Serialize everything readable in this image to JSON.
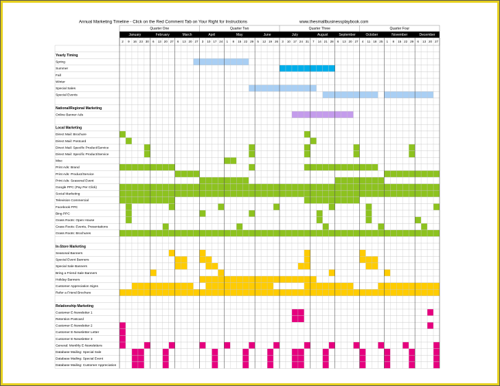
{
  "header": {
    "title": "Annual Marketing Timeline - Click on the Red Comment Tab on Your Right for Instructions",
    "url": "www.thesmallbusinessplaybook.com"
  },
  "quarters": [
    "Quarter One",
    "Quarter Two",
    "Quarter Three",
    "Quarter Four"
  ],
  "months": [
    {
      "name": "January",
      "days": [
        2,
        9,
        16,
        23,
        30
      ]
    },
    {
      "name": "February",
      "days": [
        6,
        13,
        20,
        27
      ]
    },
    {
      "name": "March",
      "days": [
        6,
        13,
        20,
        27
      ]
    },
    {
      "name": "April",
      "days": [
        3,
        10,
        17,
        24
      ]
    },
    {
      "name": "May",
      "days": [
        1,
        8,
        15,
        22,
        29
      ]
    },
    {
      "name": "June",
      "days": [
        5,
        12,
        19,
        26
      ]
    },
    {
      "name": "July",
      "days": [
        3,
        10,
        17,
        24,
        31
      ]
    },
    {
      "name": "August",
      "days": [
        7,
        14,
        21,
        28
      ]
    },
    {
      "name": "September",
      "days": [
        6,
        13,
        20,
        27
      ]
    },
    {
      "name": "October",
      "days": [
        4,
        11,
        18,
        25
      ]
    },
    {
      "name": "November",
      "days": [
        1,
        8,
        15,
        22,
        29
      ]
    },
    {
      "name": "December",
      "days": [
        6,
        13,
        20,
        27
      ]
    }
  ],
  "sections": [
    {
      "title": "Yearly Timing",
      "color": "#a9cff4",
      "rows": [
        {
          "label": "Spring",
          "fills": [
            [
              12,
              20
            ]
          ]
        },
        {
          "label": "Summer",
          "color": "#00aeea",
          "fills": [
            [
              26,
              34
            ]
          ]
        },
        {
          "label": "Fall",
          "fills": []
        },
        {
          "label": "Winter",
          "fills": []
        },
        {
          "label": "Special Sales",
          "fills": [
            [
              21,
              31
            ]
          ]
        },
        {
          "label": "Special Events",
          "fills": [
            [
              33,
              41
            ],
            [
              43,
              50
            ]
          ]
        }
      ]
    },
    {
      "title": "National/Regional Marketing",
      "color": "#c49cec",
      "rows": [
        {
          "label": "Online Banner Ads",
          "fills": [
            [
              28,
              37
            ]
          ]
        }
      ]
    },
    {
      "title": "Local Marketing",
      "color": "#8dc21f",
      "rows": [
        {
          "label": "Direct Mail: Brochure",
          "fills": [
            [
              0,
              0
            ],
            [
              30,
              30
            ]
          ]
        },
        {
          "label": "Direct Mail: Postcard",
          "fills": [
            [
              1,
              1
            ],
            [
              31,
              31
            ]
          ]
        },
        {
          "label": "Direct Mail: Specific Product/Service",
          "fills": [
            [
              4,
              4
            ],
            [
              21,
              21
            ],
            [
              30,
              30
            ],
            [
              38,
              38
            ],
            [
              47,
              47
            ]
          ]
        },
        {
          "label": "Direct Mail: Specific Product/Service",
          "fills": [
            [
              4,
              4
            ],
            [
              21,
              21
            ],
            [
              30,
              30
            ],
            [
              38,
              38
            ],
            [
              47,
              47
            ]
          ]
        },
        {
          "label": "Misc",
          "fills": [
            [
              17,
              18
            ]
          ]
        },
        {
          "label": "Print Ads: Brand",
          "fills": [
            [
              0,
              8
            ],
            [
              21,
              21
            ],
            [
              30,
              41
            ]
          ]
        },
        {
          "label": "Print Ads: Product/Service",
          "fills": [
            [
              9,
              12
            ],
            [
              43,
              51
            ]
          ]
        },
        {
          "label": "Print Ads: Seasonal Event",
          "fills": [
            [
              13,
              20
            ],
            [
              35,
              42
            ]
          ]
        },
        {
          "label": "Google PPC (Pay Per Click)",
          "fills": [
            [
              0,
              51
            ]
          ]
        },
        {
          "label": "Social Marketing",
          "fills": [
            [
              0,
              51
            ]
          ]
        },
        {
          "label": "Television Commercial",
          "fills": [
            [
              0,
              8
            ],
            [
              30,
              38
            ]
          ]
        },
        {
          "label": "Facebook PPC",
          "fills": [
            [
              1,
              1
            ],
            [
              8,
              8
            ],
            [
              16,
              16
            ],
            [
              25,
              25
            ],
            [
              34,
              34
            ],
            [
              40,
              40
            ],
            [
              51,
              51
            ]
          ]
        },
        {
          "label": "Bing PPC",
          "fills": [
            [
              1,
              1
            ],
            [
              13,
              13
            ],
            [
              21,
              21
            ],
            [
              32,
              32
            ],
            [
              40,
              40
            ]
          ]
        },
        {
          "label": "Grass Roots: Open House",
          "fills": [
            [
              1,
              1
            ],
            [
              32,
              32
            ],
            [
              40,
              40
            ],
            [
              48,
              48
            ]
          ]
        },
        {
          "label": "Grass Roots: Events, Presentations",
          "fills": [
            [
              7,
              7
            ],
            [
              19,
              19
            ],
            [
              33,
              33
            ],
            [
              42,
              42
            ],
            [
              49,
              49
            ]
          ]
        },
        {
          "label": "Grass Roots: Brochures",
          "fills": [
            [
              0,
              51
            ]
          ]
        }
      ]
    },
    {
      "title": "In-Store Marketing",
      "color": "#ffcc00",
      "rows": [
        {
          "label": "Seasonal Banners",
          "fills": [
            [
              8,
              8
            ],
            [
              13,
              13
            ],
            [
              30,
              30
            ],
            [
              39,
              39
            ]
          ]
        },
        {
          "label": "Special Event Banners",
          "fills": [
            [
              9,
              10
            ],
            [
              13,
              14
            ],
            [
              30,
              30
            ],
            [
              39,
              41
            ]
          ]
        },
        {
          "label": "Special Sale Banners",
          "fills": [
            [
              9,
              10
            ],
            [
              14,
              15
            ],
            [
              29,
              30
            ],
            [
              40,
              41
            ]
          ]
        },
        {
          "label": "Bring a Friend Sale Banners",
          "fills": [
            [
              5,
              5
            ],
            [
              16,
              16
            ],
            [
              34,
              34
            ],
            [
              43,
              43
            ]
          ]
        },
        {
          "label": "Holiday Banners",
          "fills": [
            [
              13,
              31
            ]
          ]
        },
        {
          "label": "Customer Appreciation Signs",
          "fills": [
            [
              2,
              11
            ],
            [
              14,
              24
            ],
            [
              30,
              37
            ],
            [
              42,
              51
            ]
          ]
        },
        {
          "label": "Refer a Friend Brochure",
          "fills": [
            [
              0,
              51
            ]
          ]
        }
      ]
    },
    {
      "title": "Relationship Marketing",
      "color": "#e6007e",
      "rows": [
        {
          "label": "Customer E-Newsletter 1",
          "fills": [
            [
              28,
              29
            ],
            [
              50,
              50
            ]
          ]
        },
        {
          "label": "Retention Postcard",
          "fills": [
            [
              28,
              29
            ]
          ]
        },
        {
          "label": "Customer E-Newsletter 2",
          "fills": [
            [
              0,
              0
            ],
            [
              50,
              50
            ]
          ]
        },
        {
          "label": "Customer E-Newsletter Letter",
          "fills": [
            [
              0,
              0
            ]
          ]
        },
        {
          "label": "Customer E-Newsletter 3",
          "fills": [
            [
              0,
              0
            ]
          ]
        },
        {
          "label": "General: Monthly E-Newsletters",
          "fills": [
            [
              0,
              0
            ],
            [
              4,
              4
            ],
            [
              8,
              8
            ],
            [
              13,
              13
            ],
            [
              17,
              17
            ],
            [
              21,
              21
            ],
            [
              25,
              25
            ],
            [
              30,
              30
            ],
            [
              34,
              34
            ],
            [
              38,
              38
            ],
            [
              42,
              42
            ],
            [
              46,
              46
            ],
            [
              51,
              51
            ]
          ]
        },
        {
          "label": "Database Mailing: Special Sale",
          "fills": [
            [
              2,
              3
            ],
            [
              7,
              7
            ],
            [
              15,
              15
            ],
            [
              20,
              20
            ],
            [
              24,
              24
            ],
            [
              28,
              29
            ],
            [
              33,
              33
            ],
            [
              39,
              39
            ],
            [
              43,
              43
            ],
            [
              47,
              47
            ],
            [
              51,
              51
            ]
          ]
        },
        {
          "label": "Database Mailing: Special Event",
          "fills": [
            [
              2,
              3
            ],
            [
              7,
              7
            ],
            [
              15,
              15
            ],
            [
              20,
              20
            ],
            [
              24,
              24
            ],
            [
              28,
              29
            ],
            [
              33,
              33
            ],
            [
              39,
              39
            ],
            [
              43,
              43
            ],
            [
              47,
              47
            ],
            [
              51,
              51
            ]
          ]
        },
        {
          "label": "Database Mailing: Customer Appreciation",
          "fills": [
            [
              2,
              3
            ],
            [
              7,
              7
            ],
            [
              15,
              15
            ],
            [
              20,
              20
            ],
            [
              24,
              24
            ],
            [
              28,
              29
            ],
            [
              33,
              33
            ],
            [
              39,
              39
            ],
            [
              43,
              43
            ],
            [
              47,
              47
            ],
            [
              51,
              51
            ]
          ]
        }
      ]
    }
  ]
}
